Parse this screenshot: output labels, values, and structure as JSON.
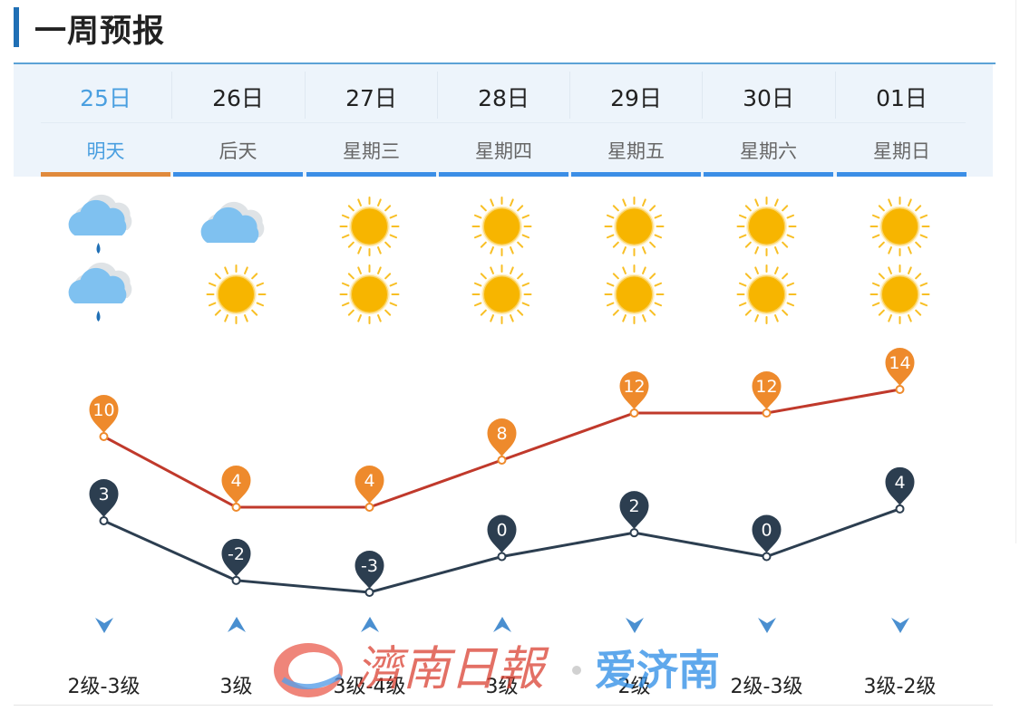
{
  "title": "一周预报",
  "days": [
    {
      "date": "25日",
      "day": "明天",
      "day_icon": "rain-icon",
      "night_icon": "rain-icon",
      "high": "10",
      "low": "3",
      "wind_dir": "wind-down-icon",
      "wind": "2级-3级",
      "active": true
    },
    {
      "date": "26日",
      "day": "后天",
      "day_icon": "cloudy-icon",
      "night_icon": "sun-icon",
      "high": "4",
      "low": "-2",
      "wind_dir": "wind-up-icon",
      "wind": "3级",
      "active": false
    },
    {
      "date": "27日",
      "day": "星期三",
      "day_icon": "sun-icon",
      "night_icon": "sun-icon",
      "high": "4",
      "low": "-3",
      "wind_dir": "wind-up-icon",
      "wind": "3级-4级",
      "active": false
    },
    {
      "date": "28日",
      "day": "星期四",
      "day_icon": "sun-icon",
      "night_icon": "sun-icon",
      "high": "8",
      "low": "0",
      "wind_dir": "wind-up-icon",
      "wind": "3级",
      "active": false
    },
    {
      "date": "29日",
      "day": "星期五",
      "day_icon": "sun-icon",
      "night_icon": "sun-icon",
      "high": "12",
      "low": "2",
      "wind_dir": "wind-down-icon",
      "wind": "2级",
      "active": false
    },
    {
      "date": "30日",
      "day": "星期六",
      "day_icon": "sun-icon",
      "night_icon": "sun-icon",
      "high": "12",
      "low": "0",
      "wind_dir": "wind-down-icon",
      "wind": "2级-3级",
      "active": false
    },
    {
      "date": "01日",
      "day": "星期日",
      "day_icon": "sun-icon",
      "night_icon": "sun-icon",
      "high": "14",
      "low": "4",
      "wind_dir": "wind-down-icon",
      "wind": "3级-2级",
      "active": false
    }
  ],
  "colors": {
    "accent": "#4a9fe0",
    "active_bar": "#e08a3c",
    "tab_bar": "#3b8ee6",
    "high_line": "#c0392b",
    "high_pin": "#ee8a2c",
    "low_line": "#2c3e50",
    "low_pin": "#2c3e50",
    "sun": "#f7b500",
    "cloud": "#7fc1f0",
    "rain_drop": "#1f6fb5"
  },
  "watermark": {
    "brand_cn": "濟南日報",
    "brand_app": "爱济南"
  }
}
